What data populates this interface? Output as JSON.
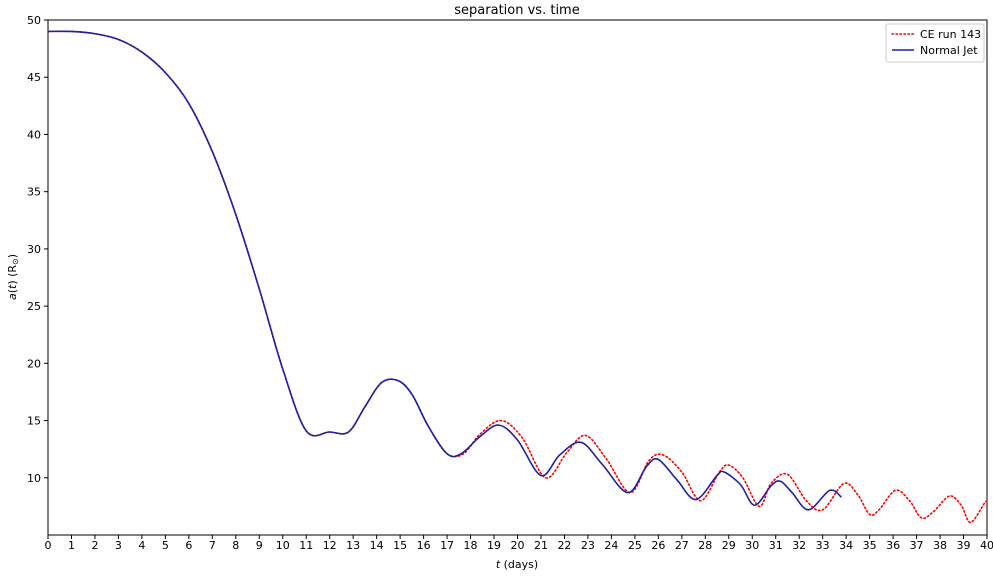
{
  "chart_data": {
    "type": "line",
    "title": "separation vs. time",
    "xlabel": {
      "italic": "t",
      "rest": " (days)"
    },
    "ylabel": {
      "italic": "a",
      "mid": "(",
      "italic2": "t",
      "rest": ") (R",
      "sub": "⊙",
      "end": ")"
    },
    "xlim": [
      0,
      40
    ],
    "ylim": [
      5,
      50
    ],
    "x_ticks": [
      "0",
      "1",
      "2",
      "3",
      "4",
      "5",
      "6",
      "7",
      "8",
      "9",
      "10",
      "11",
      "12",
      "13",
      "14",
      "15",
      "16",
      "17",
      "18",
      "19",
      "20",
      "21",
      "22",
      "23",
      "24",
      "25",
      "26",
      "27",
      "28",
      "29",
      "30",
      "31",
      "32",
      "33",
      "34",
      "35",
      "36",
      "37",
      "38",
      "39",
      "40"
    ],
    "y_ticks": [
      "10",
      "15",
      "20",
      "25",
      "30",
      "35",
      "40",
      "45",
      "50"
    ],
    "grid": false,
    "legend_position": "top-right",
    "series": [
      {
        "name": "CE run 143",
        "color": "#ff0000",
        "style": "dotted",
        "x": [
          0,
          1,
          2,
          3,
          4,
          5,
          6,
          7,
          8,
          9,
          10,
          11,
          12,
          12.8,
          13.5,
          14.2,
          14.9,
          15.5,
          16.2,
          17,
          17.7,
          18.4,
          19.3,
          20.2,
          21.2,
          22.1,
          22.9,
          23.8,
          24.8,
          25.6,
          26.2,
          27,
          27.8,
          28.6,
          29,
          29.6,
          30.3,
          30.8,
          31.5,
          32.3,
          33,
          33.9,
          34.5,
          35,
          35.4,
          36.1,
          36.7,
          37.2,
          37.7,
          38.4,
          38.9,
          39.3,
          39.9,
          40
        ],
        "y": [
          49,
          49,
          48.8,
          48.3,
          47.2,
          45.4,
          42.7,
          38.5,
          33,
          26.5,
          19.5,
          14.1,
          14,
          14,
          16.2,
          18.3,
          18.5,
          17.3,
          14.5,
          12.1,
          12.1,
          13.8,
          15,
          13.5,
          10,
          12.2,
          13.7,
          11.6,
          8.7,
          11.5,
          12,
          10.5,
          8,
          10.5,
          11.1,
          10,
          7.5,
          9.5,
          10.3,
          8,
          7.2,
          9.5,
          8.5,
          6.8,
          7.2,
          8.9,
          8,
          6.5,
          7,
          8.4,
          7.6,
          6.1,
          7.8,
          7.9
        ]
      },
      {
        "name": "Normal Jet",
        "color": "#1f1fa8",
        "style": "solid",
        "x": [
          0,
          1,
          2,
          3,
          4,
          5,
          6,
          7,
          8,
          9,
          10,
          11,
          12,
          12.8,
          13.5,
          14.2,
          14.9,
          15.5,
          16.2,
          17,
          17.6,
          18.4,
          19.2,
          20,
          21,
          21.8,
          22.7,
          23.6,
          24.7,
          25.5,
          26,
          26.8,
          27.6,
          28.5,
          28.8,
          29.5,
          30.1,
          30.8,
          31.2,
          31.7,
          32.4,
          33.3,
          33.8
        ],
        "y": [
          49,
          49,
          48.8,
          48.3,
          47.2,
          45.4,
          42.7,
          38.5,
          33,
          26.5,
          19.5,
          14.1,
          14,
          14,
          16.2,
          18.3,
          18.5,
          17.3,
          14.5,
          12.1,
          12.1,
          13.6,
          14.6,
          13.3,
          10.2,
          12,
          13.1,
          11.2,
          8.7,
          11,
          11.6,
          9.8,
          8.1,
          10.2,
          10.5,
          9.4,
          7.6,
          9.3,
          9.7,
          8.7,
          7.2,
          8.9,
          8.3
        ]
      }
    ]
  }
}
